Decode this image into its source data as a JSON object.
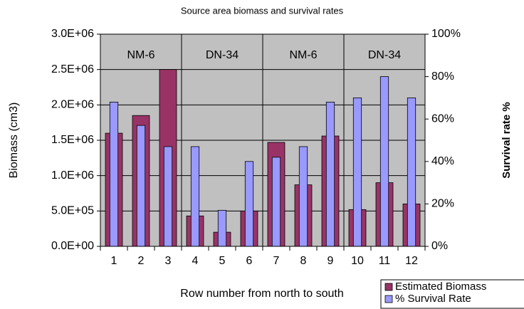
{
  "chart_data": {
    "type": "bar",
    "title": "Source area biomass and survival rates",
    "x_label": "Row number from north to south",
    "y_label": "Biomass (cm3)",
    "y2_label": "Survival rate %",
    "categories": [
      "1",
      "2",
      "3",
      "4",
      "5",
      "6",
      "7",
      "8",
      "9",
      "10",
      "11",
      "12"
    ],
    "series": [
      {
        "name": "Estimated Biomass",
        "color": "#993366",
        "axis": "y",
        "values": [
          1600000,
          1850000,
          2500000,
          430000,
          200000,
          500000,
          1470000,
          870000,
          1560000,
          520000,
          900000,
          600000
        ]
      },
      {
        "name": "% Survival Rate",
        "color": "#9999ff",
        "axis": "y2",
        "values": [
          68,
          57,
          47,
          47,
          17,
          40,
          42,
          47,
          68,
          70,
          80,
          70
        ]
      }
    ],
    "groups": [
      {
        "label": "NM-6",
        "span": 3
      },
      {
        "label": "DN-34",
        "span": 3
      },
      {
        "label": "NM-6",
        "span": 3
      },
      {
        "label": "DN-34",
        "span": 3
      }
    ],
    "ylim": [
      0,
      3000000
    ],
    "yticks": [
      {
        "value": 0,
        "label": "0.0E+00"
      },
      {
        "value": 500000,
        "label": "5.0E+05"
      },
      {
        "value": 1000000,
        "label": "1.0E+06"
      },
      {
        "value": 1500000,
        "label": "1.5E+06"
      },
      {
        "value": 2000000,
        "label": "2.0E+06"
      },
      {
        "value": 2500000,
        "label": "2.5E+06"
      },
      {
        "value": 3000000,
        "label": "3.0E+06"
      }
    ],
    "y2lim": [
      0,
      100
    ],
    "y2ticks": [
      {
        "value": 0,
        "label": "0%"
      },
      {
        "value": 20,
        "label": "20%"
      },
      {
        "value": 40,
        "label": "40%"
      },
      {
        "value": 60,
        "label": "60%"
      },
      {
        "value": 80,
        "label": "80%"
      },
      {
        "value": 100,
        "label": "100%"
      }
    ],
    "grid": true,
    "plot_background": "#c0c0c0",
    "legend": "bottom-right"
  }
}
